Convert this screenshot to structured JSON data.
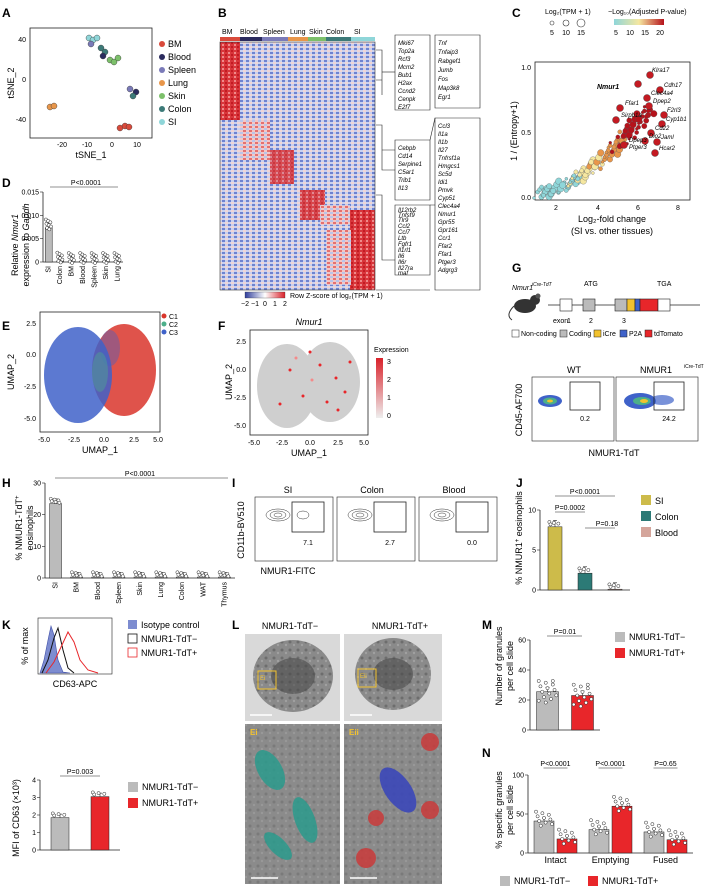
{
  "panel_labels": {
    "A": "A",
    "B": "B",
    "C": "C",
    "D": "D",
    "E": "E",
    "F": "F",
    "G": "G",
    "H": "H",
    "I": "I",
    "J": "J",
    "K": "K",
    "L": "L",
    "M": "M",
    "N": "N"
  },
  "colors": {
    "BM": "#d94a3b",
    "Blood": "#2b2b5e",
    "Spleen": "#7a7ab8",
    "Lung": "#e8964a",
    "Skin": "#7cc06a",
    "Colon": "#3c7a78",
    "SI": "#8fd6d9",
    "nmur_pos": "#e8262a",
    "nmur_neg": "#bbbbbb",
    "C1": "#d9352b",
    "C2": "#4caf8a",
    "C3": "#3f62c9"
  },
  "panelA": {
    "xlabel": "tSNE_1",
    "ylabel": "tSNE_2",
    "xticks": [
      "-20",
      "-10",
      "0",
      "10"
    ],
    "yticks": [
      "40",
      "0",
      "-40"
    ],
    "legend": [
      "BM",
      "Blood",
      "Spleen",
      "Lung",
      "Skin",
      "Colon",
      "SI"
    ]
  },
  "panelB": {
    "tissues": [
      "BM",
      "Blood",
      "Spleen",
      "Lung",
      "Skin",
      "Colon",
      "SI"
    ],
    "scale_label": "Row Z-score of log₂(TPM + 1)",
    "scale_ticks": [
      "−2",
      "−1",
      "0",
      "1",
      "2"
    ],
    "gene_groups": [
      [
        "Mki67",
        "Top2a",
        "Rcf3",
        "Mcm2",
        "Bub1",
        "H2ax",
        "Ccnd2",
        "Cenpk",
        "E2f7"
      ],
      [
        "Cebpb",
        "Cd14",
        "Serpine1",
        "C5ar1",
        "Trib1",
        "Il13"
      ],
      [
        "Il12rb2",
        "Tnfsf9",
        "Tlr9",
        "Ccl2",
        "Ccl7",
        "Ltb",
        "Fgfr1",
        "Il1rl1",
        "Il6",
        "Il6r",
        "Il27ra",
        "maf"
      ]
    ],
    "gene_groups_right": [
      [
        "Tnf",
        "Tnfaip3",
        "Rabgef1",
        "Jumb",
        "Fos",
        "Map3k8",
        "Egr1"
      ],
      [
        "Ccl3",
        "Il1a",
        "Il1b",
        "Il27",
        "Tnfrsf1a",
        "Hmgcs1",
        "Sc5d",
        "Idi1",
        "Pmvk",
        "Cyp51",
        "Clec4a4",
        "Nmur1",
        "Gpr55",
        "Gpr161",
        "Ccr1",
        "Ffar2",
        "Ffar1",
        "Ptger3",
        "Adgrg3"
      ]
    ]
  },
  "panelC": {
    "xlabel": "Log₂-fold change",
    "xlabel2": "(SI vs. other tissues)",
    "ylabel": "1 / (Entropy+1)",
    "xticks": [
      "2",
      "4",
      "6",
      "8"
    ],
    "yticks": [
      "0.0",
      "0.5",
      "1.0"
    ],
    "size_title": "Log₂(TPM + 1)",
    "size_ticks": [
      "5",
      "10",
      "15"
    ],
    "color_title": "−Log₁₀(Adjusted P-value)",
    "color_ticks": [
      "5",
      "10",
      "15",
      "20"
    ],
    "genes": [
      "Nmur1",
      "Klra17",
      "Cdh17",
      "Clec4a4",
      "Dpep2",
      "Ffar1",
      "F2rl3",
      "Cyp1b1",
      "Sirpb1a",
      "Cd22",
      "Jaml",
      "Dpep3",
      "Ptger3",
      "Dio2",
      "Hcar2"
    ]
  },
  "chart_data": [
    {
      "type": "bar",
      "id": "D",
      "title": "",
      "ylabel": "Relative Nmur1 expression to Gapdh",
      "categories": [
        "SI",
        "Colon",
        "BM",
        "Blood",
        "Spleen",
        "Skin",
        "Lung"
      ],
      "values": [
        0.0073,
        0.0002,
        0.0001,
        0.0001,
        0.0001,
        0.0001,
        0.0001
      ],
      "ylim": [
        0,
        0.015
      ],
      "yticks": [
        "0",
        "0.005",
        "0.010",
        "0.015"
      ],
      "annotation": "P<0.0001"
    },
    {
      "type": "bar",
      "id": "H",
      "ylabel": "% NMUR1-TdT+ eosinophils",
      "categories": [
        "SI",
        "BM",
        "Blood",
        "Spleen",
        "Skin",
        "Lung",
        "Colon",
        "WAT",
        "Thymus"
      ],
      "values": [
        23.5,
        0.3,
        0.3,
        0.3,
        0.3,
        0.3,
        0.3,
        0.3,
        0.3
      ],
      "ylim": [
        0,
        30
      ],
      "yticks": [
        "0",
        "10",
        "20",
        "30"
      ],
      "annotation": "P<0.0001"
    },
    {
      "type": "bar",
      "id": "J",
      "ylabel": "% NMUR1+ eosinophils",
      "categories": [
        "SI",
        "Colon",
        "Blood"
      ],
      "values": [
        7.9,
        2.1,
        0.1
      ],
      "ylim": [
        0,
        10
      ],
      "yticks": [
        "0",
        "5",
        "10"
      ],
      "annotations": [
        "P<0.0001",
        "P=0.0002",
        "P=0.18"
      ]
    },
    {
      "type": "bar",
      "id": "K",
      "ylabel": "MFI of CD63 (×10³)",
      "categories": [
        "NMUR1-TdT−",
        "NMUR1-TdT+"
      ],
      "values": [
        1.85,
        3.05
      ],
      "ylim": [
        0,
        4
      ],
      "yticks": [
        "0",
        "1",
        "2",
        "3",
        "4"
      ],
      "annotation": "P=0.003"
    },
    {
      "type": "bar",
      "id": "M",
      "ylabel": "Number of granules per cell slide",
      "categories": [
        "NMUR1-TdT−",
        "NMUR1-TdT+"
      ],
      "values": [
        25.5,
        23.0
      ],
      "ylim": [
        0,
        60
      ],
      "yticks": [
        "0",
        "20",
        "40",
        "60"
      ],
      "annotation": "P=0.01"
    },
    {
      "type": "bar",
      "id": "N",
      "ylabel": "% specific granules per cell slide",
      "categories": [
        "Intact",
        "Emptying",
        "Fused"
      ],
      "series": [
        {
          "name": "NMUR1-TdT−",
          "values": [
            41,
            30,
            27
          ]
        },
        {
          "name": "NMUR1-TdT+",
          "values": [
            18,
            60,
            17
          ]
        }
      ],
      "ylim": [
        0,
        100
      ],
      "yticks": [
        "0",
        "50",
        "100"
      ],
      "annotations": [
        "P<0.0001",
        "P<0.0001",
        "P=0.65"
      ]
    }
  ],
  "panelE": {
    "xlabel": "UMAP_1",
    "ylabel": "UMAP_2",
    "xticks": [
      "-5.0",
      "-2.5",
      "0.0",
      "2.5",
      "5.0"
    ],
    "yticks": [
      "2.5",
      "0.0",
      "-2.5",
      "-5.0"
    ],
    "legend": [
      "C1",
      "C2",
      "C3"
    ]
  },
  "panelF": {
    "title": "Nmur1",
    "xlabel": "UMAP_1",
    "ylabel": "UMAP_2",
    "xticks": [
      "-5.0",
      "-2.5",
      "0.0",
      "2.5",
      "5.0"
    ],
    "yticks": [
      "2.5",
      "0.0",
      "-2.5",
      "-5.0"
    ],
    "legend_title": "Expression",
    "legend_ticks": [
      "3",
      "2",
      "1",
      "0"
    ]
  },
  "panelG": {
    "allele": "Nmur1",
    "allele_sup": "iCre-TdT",
    "atg": "ATG",
    "tga": "TGA",
    "exon": "exon:",
    "exon_nums": [
      "1",
      "2",
      "3"
    ],
    "legend": [
      "Non-coding",
      "Coding",
      "iCre",
      "P2A",
      "tdTomato"
    ],
    "plots": [
      {
        "title": "WT",
        "value": "0.2"
      },
      {
        "title": "NMUR1",
        "title_sup": "iCre-TdT",
        "value": "24.2"
      }
    ],
    "xlabel": "NMUR1-TdT",
    "ylabel": "CD45-AF700"
  },
  "panelI": {
    "plots": [
      {
        "title": "SI",
        "value": "7.1"
      },
      {
        "title": "Colon",
        "value": "2.7"
      },
      {
        "title": "Blood",
        "value": "0.0"
      }
    ],
    "xlabel": "NMUR1-FITC",
    "ylabel": "CD11b-BV510"
  },
  "panelJ": {
    "legend": [
      "SI",
      "Colon",
      "Blood"
    ]
  },
  "panelK": {
    "legend": [
      "Isotype control",
      "NMUR1-TdT−",
      "NMUR1-TdT+"
    ],
    "xlabel": "CD63-APC",
    "ylabel": "% of max",
    "legend2": [
      "NMUR1-TdT−",
      "NMUR1-TdT+"
    ]
  },
  "panelL": {
    "titles": [
      "NMUR1-TdT−",
      "NMUR1-TdT+"
    ],
    "insets": [
      "Ei",
      "Eii"
    ],
    "inset_box": "Ei",
    "inset_box2": "Eii"
  },
  "panelM": {
    "legend": [
      "NMUR1-TdT−",
      "NMUR1-TdT+"
    ]
  },
  "panelN": {
    "legend": [
      "NMUR1-TdT−",
      "NMUR1-TdT+"
    ]
  }
}
